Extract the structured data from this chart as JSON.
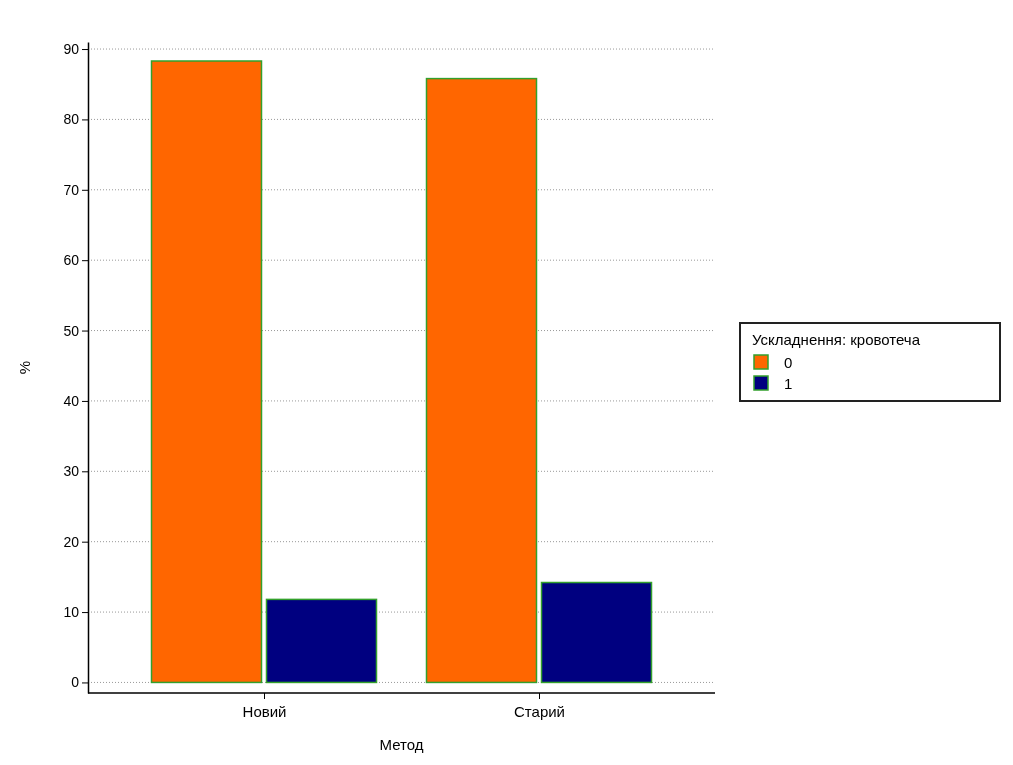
{
  "chart_data": {
    "type": "bar",
    "xlabel": "Метод",
    "ylabel": "%",
    "legend_title": "Ускладнення: кровотеча",
    "categories": [
      "Новий",
      "Старий"
    ],
    "series": [
      {
        "name": "0",
        "color": "#ff6600",
        "values": [
          88.3,
          85.8
        ]
      },
      {
        "name": "1",
        "color": "#000080",
        "values": [
          11.8,
          14.2
        ]
      }
    ],
    "ylim": [
      -1.5,
      91
    ],
    "yticks": [
      0,
      10,
      20,
      30,
      40,
      50,
      60,
      70,
      80,
      90
    ],
    "grid": "y",
    "legend": "right"
  }
}
